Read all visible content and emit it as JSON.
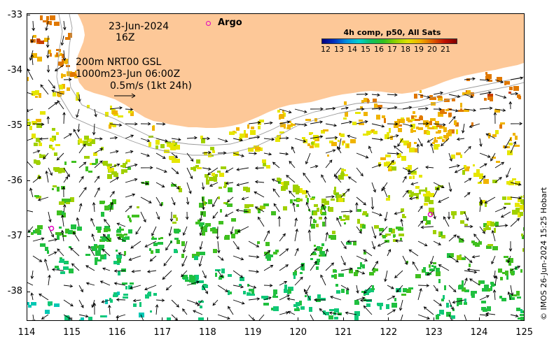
{
  "map": {
    "title_date": "23-Jun-2024",
    "title_time": "16Z",
    "contour_label": "200m  NRT00 GSL",
    "contour_label_2": "1000m23-Jun 06:00Z",
    "scale_label": "0.5m/s (1kt 24h)",
    "legend_argo": "Argo",
    "credit": "© IMOS 26-Jun-2024 15:25 Hobart",
    "lon_ticks": [
      "114",
      "115",
      "116",
      "117",
      "118",
      "119",
      "120",
      "121",
      "122",
      "123",
      "124",
      "125"
    ],
    "lat_ticks": [
      "-33",
      "-34",
      "-35",
      "-36",
      "-37",
      "-38"
    ],
    "land_color": "#fdc898",
    "argo_color": "#e000c0",
    "argo_floats": [
      {
        "lon": 114.55,
        "lat": -36.83
      },
      {
        "lon": 122.92,
        "lat": -36.58
      }
    ]
  },
  "colorbar": {
    "title": "4h comp, p50, All Sats",
    "ticks": [
      "12",
      "13",
      "14",
      "15",
      "16",
      "17",
      "18",
      "19",
      "20",
      "21"
    ]
  }
}
